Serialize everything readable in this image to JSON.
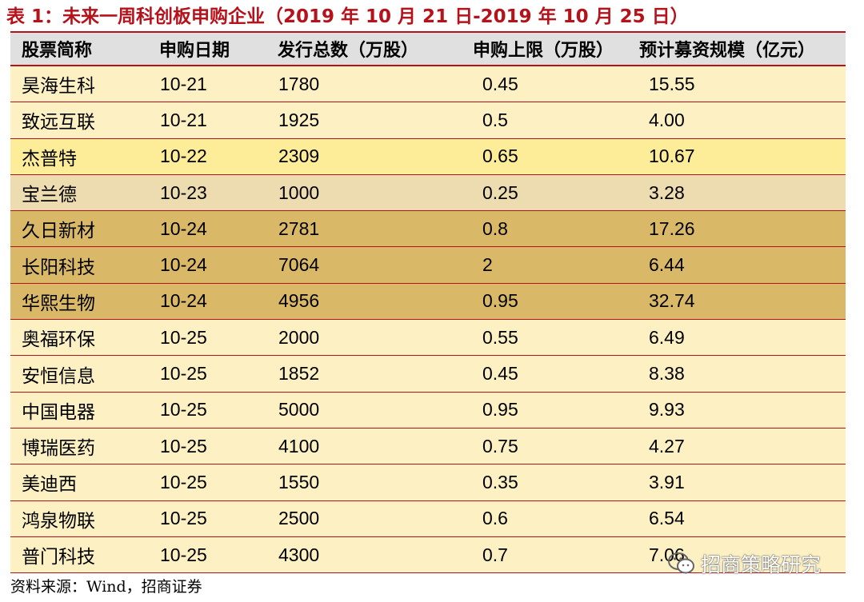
{
  "title": "表 1：未来一周科创板申购企业（2019 年 10 月 21 日-2019 年 10 月 25 日）",
  "table": {
    "headers": [
      "股票简称",
      "申购日期",
      "发行总数（万股）",
      "申购上限（万股）",
      "预计募资规模（亿元）"
    ],
    "rows": [
      {
        "name": "昊海生科",
        "date": "10-21",
        "total": "1780",
        "limit": "0.45",
        "funds": "15.55",
        "row_color": "#fdf1c4"
      },
      {
        "name": "致远互联",
        "date": "10-21",
        "total": "1925",
        "limit": "0.5",
        "funds": "4.00",
        "row_color": "#fdf1c4"
      },
      {
        "name": "杰普特",
        "date": "10-22",
        "total": "2309",
        "limit": "0.65",
        "funds": "10.67",
        "row_color": "#fdec98"
      },
      {
        "name": "宝兰德",
        "date": "10-23",
        "total": "1000",
        "limit": "0.25",
        "funds": "3.28",
        "row_color": "#ecdcb0"
      },
      {
        "name": "久日新材",
        "date": "10-24",
        "total": "2781",
        "limit": "0.8",
        "funds": "17.26",
        "row_color": "#d9b868"
      },
      {
        "name": "长阳科技",
        "date": "10-24",
        "total": "7064",
        "limit": "2",
        "funds": "6.44",
        "row_color": "#d9b868"
      },
      {
        "name": "华熙生物",
        "date": "10-24",
        "total": "4956",
        "limit": "0.95",
        "funds": "32.74",
        "row_color": "#d9b868"
      },
      {
        "name": "奥福环保",
        "date": "10-25",
        "total": "2000",
        "limit": "0.55",
        "funds": "6.49",
        "row_color": "#fdf1c4"
      },
      {
        "name": "安恒信息",
        "date": "10-25",
        "total": "1852",
        "limit": "0.45",
        "funds": "8.38",
        "row_color": "#fdf1c4"
      },
      {
        "name": "中国电器",
        "date": "10-25",
        "total": "5000",
        "limit": "0.95",
        "funds": "9.93",
        "row_color": "#fdf1c4"
      },
      {
        "name": "博瑞医药",
        "date": "10-25",
        "total": "4100",
        "limit": "0.75",
        "funds": "4.27",
        "row_color": "#fdf1c4"
      },
      {
        "name": "美迪西",
        "date": "10-25",
        "total": "1550",
        "limit": "0.35",
        "funds": "3.91",
        "row_color": "#fdf1c4"
      },
      {
        "name": "鸿泉物联",
        "date": "10-25",
        "total": "2500",
        "limit": "0.6",
        "funds": "6.54",
        "row_color": "#fdf1c4"
      },
      {
        "name": "普门科技",
        "date": "10-25",
        "total": "4300",
        "limit": "0.7",
        "funds": "7.06",
        "row_color": "#fdf1c4"
      }
    ]
  },
  "source": "资料来源：Wind，招商证券",
  "watermark": {
    "text": "招商策略研究",
    "icon": "wechat-icon"
  },
  "colors": {
    "accent": "#b5121b",
    "header_bg": "#e0e0e0"
  }
}
